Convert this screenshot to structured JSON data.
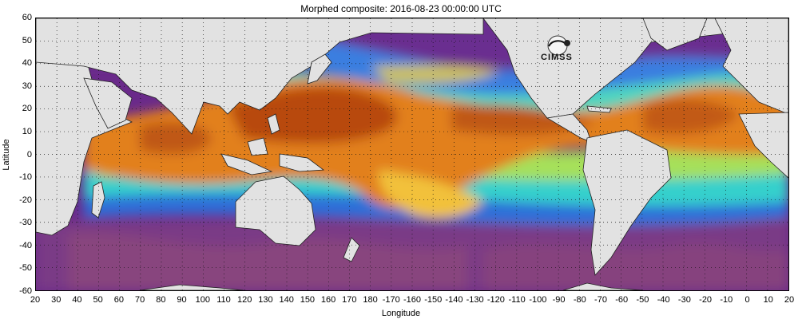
{
  "chart_data": {
    "type": "heatmap",
    "title": "Morphed composite: 2016-08-23 00:00:00 UTC",
    "xlabel": "Longitude",
    "ylabel": "Latitude",
    "x_ticks": [
      "20",
      "30",
      "40",
      "50",
      "60",
      "70",
      "80",
      "90",
      "100",
      "110",
      "120",
      "130",
      "140",
      "150",
      "160",
      "170",
      "180",
      "-170",
      "-160",
      "-150",
      "-140",
      "-130",
      "-120",
      "-110",
      "-100",
      "-90",
      "-80",
      "-70",
      "-60",
      "-50",
      "-40",
      "-30",
      "-20",
      "-10",
      "0",
      "10",
      "20"
    ],
    "y_ticks": [
      "60",
      "50",
      "40",
      "30",
      "20",
      "10",
      "0",
      "-10",
      "-20",
      "-30",
      "-40",
      "-50",
      "-60"
    ],
    "xlim": [
      20,
      380
    ],
    "ylim": [
      -60,
      60
    ],
    "grid": true,
    "colors": {
      "land": "#e2e2e2",
      "dry": "#7a2a8e",
      "moderate": "#2f7fd8",
      "cyan": "#39d6d0",
      "green": "#9ee05a",
      "yellow": "#f2c13a",
      "moist": "#e07a1a",
      "very_moist": "#b84a0a"
    }
  },
  "logo": {
    "text": "CIMSS",
    "icon": "cimss-logo-icon"
  }
}
